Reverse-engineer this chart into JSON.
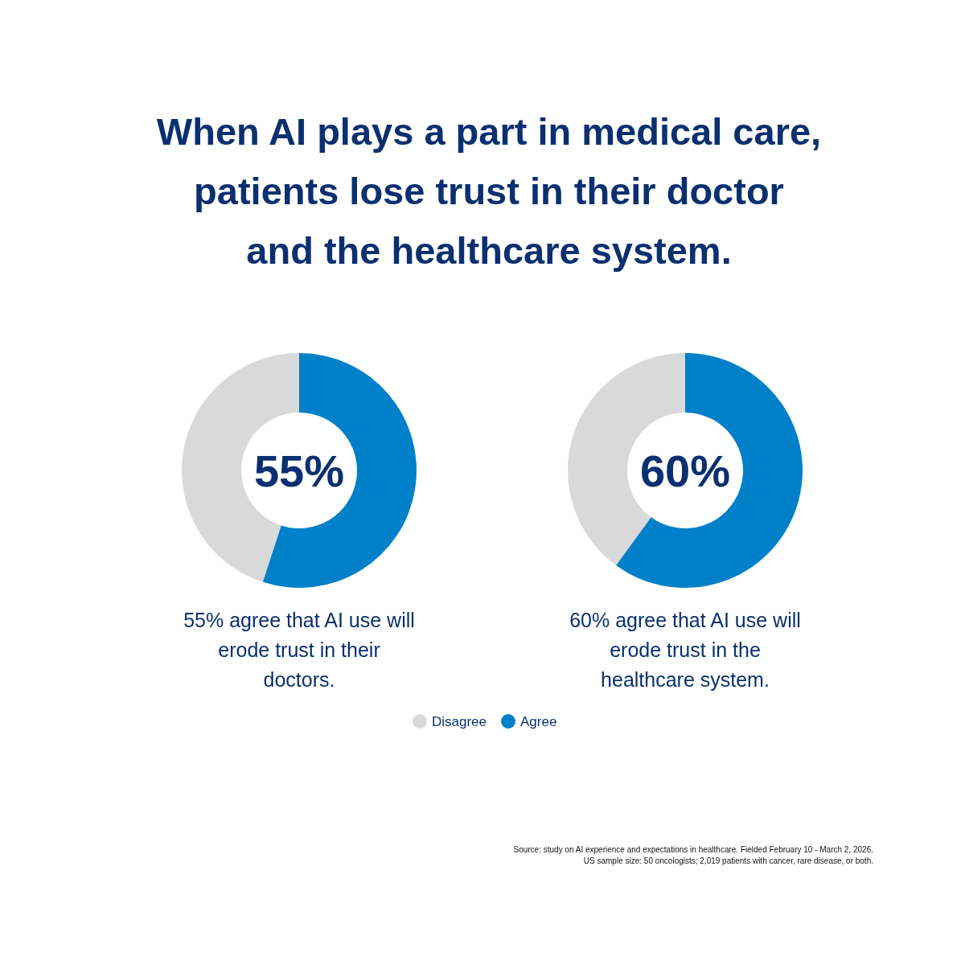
{
  "chart_data": [
    {
      "type": "donut",
      "title": "When AI plays a part in medical care, patients lose trust in their doctor and the healthcare system.",
      "categories": [
        "Disagree",
        "Agree"
      ],
      "values": [
        45,
        55
      ],
      "colors": [
        "#d9d9d9",
        "#0080c9"
      ],
      "legend": "bottom",
      "annotations": [
        "55%",
        "55% agree that AI use will erode trust in their doctors."
      ]
    },
    {
      "type": "donut",
      "categories": [
        null,
        null
      ],
      "values": [
        40,
        60
      ],
      "colors": [
        "#d9d9d9",
        "#0080c9"
      ],
      "annotations": [
        "60%",
        "60% agree that AI use will erode trust in the healthcare system.",
        "Source: study on AI experience and expectations in healthcare. Fielded February 10 - March 2, 2026.",
        "US sample size: 50 oncologists; 2,019 patients with cancer, rare disease, or both."
      ]
    }
  ]
}
